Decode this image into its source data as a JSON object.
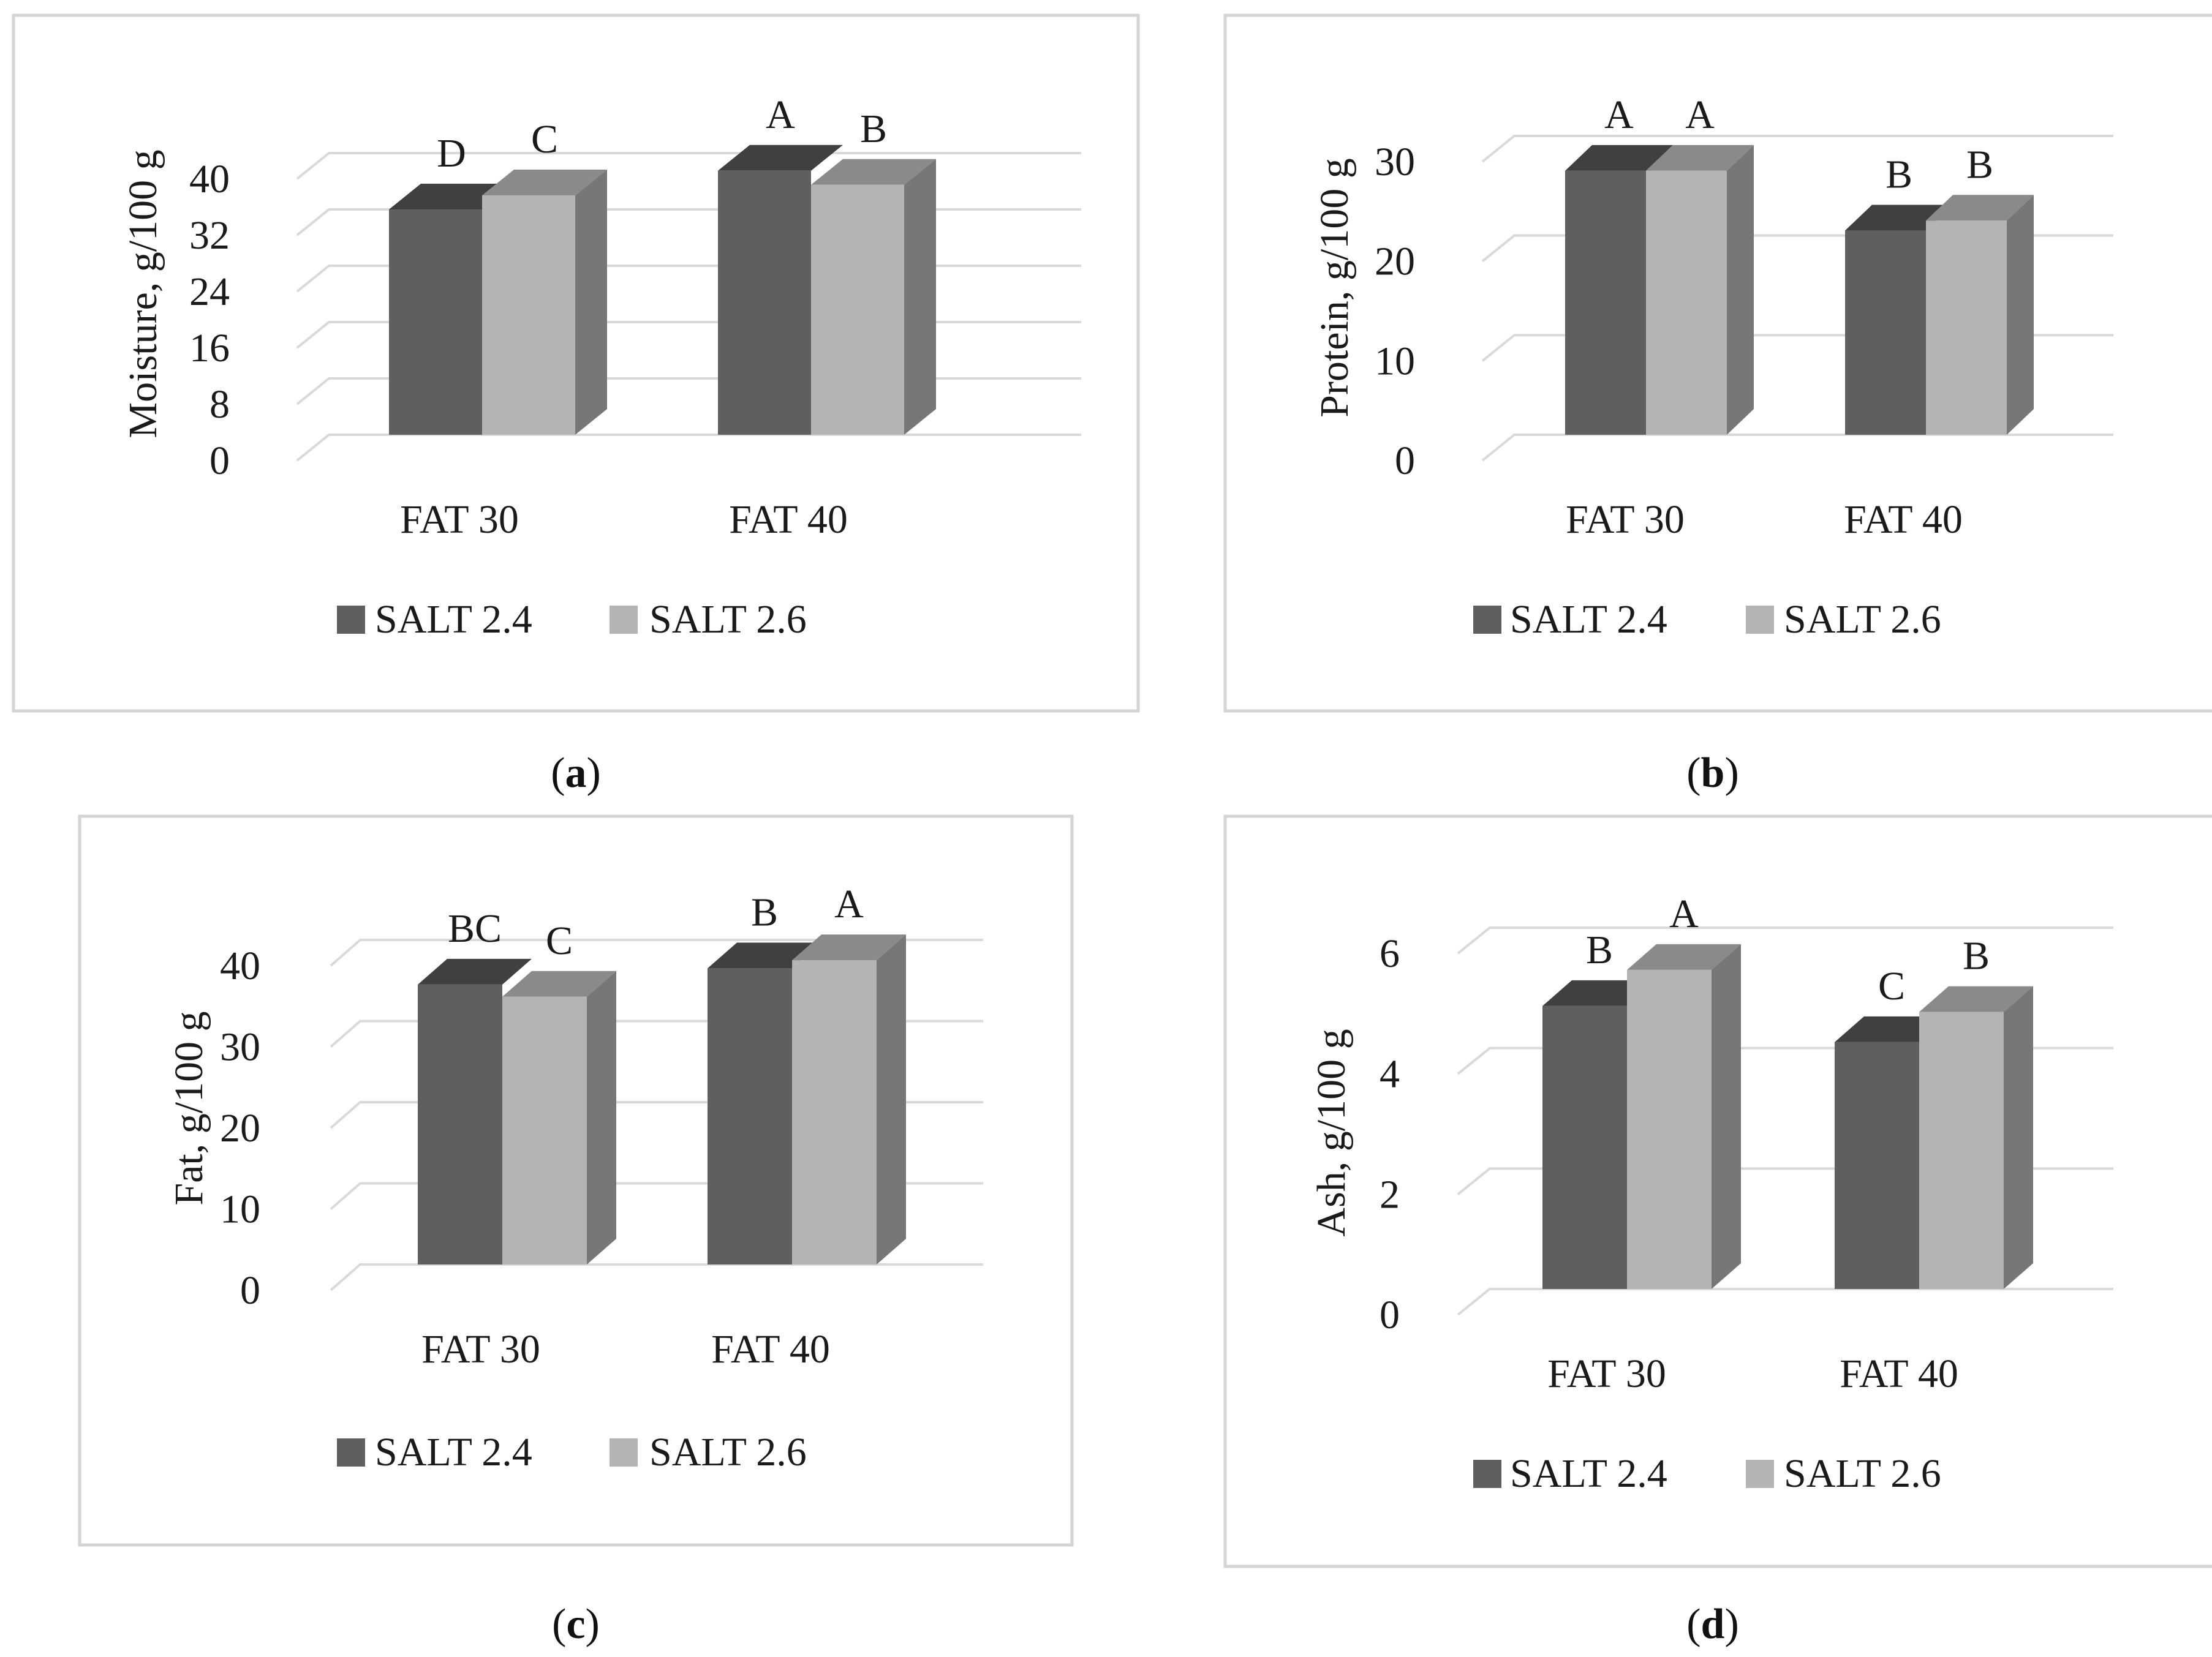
{
  "figure": {
    "panel_labels": [
      {
        "open": "(",
        "letter": "a",
        "close": ")"
      },
      {
        "open": "(",
        "letter": "b",
        "close": ")"
      },
      {
        "open": "(",
        "letter": "c",
        "close": ")"
      },
      {
        "open": "(",
        "letter": "d",
        "close": ")"
      }
    ]
  },
  "colors": {
    "salt_2_4_front": "#5f5f5f",
    "salt_2_4_top": "#404040",
    "salt_2_6_front": "#b4b4b4",
    "salt_2_6_top": "#8a8a8a",
    "bar_side": "#777777",
    "gridline": "#d9d9d9",
    "frame": "#d4d4d4"
  },
  "chart_data": [
    {
      "type": "bar",
      "panel": "a",
      "categories": [
        "FAT 30",
        "FAT 40"
      ],
      "series": [
        {
          "name": "SALT 2.4",
          "values": [
            32,
            37.5
          ],
          "letters": [
            "D",
            "A"
          ]
        },
        {
          "name": "SALT 2.6",
          "values": [
            34,
            35.5
          ],
          "letters": [
            "C",
            "B"
          ]
        }
      ],
      "ylabel": "Moisture, g/100 g",
      "ylim": [
        0,
        40
      ],
      "yticks": [
        "0",
        "8",
        "16",
        "24",
        "32",
        "40"
      ],
      "legend": "bottom"
    },
    {
      "type": "bar",
      "panel": "b",
      "categories": [
        "FAT 30",
        "FAT 40"
      ],
      "series": [
        {
          "name": "SALT 2.4",
          "values": [
            26.5,
            20.5
          ],
          "letters": [
            "A",
            "B"
          ]
        },
        {
          "name": "SALT 2.6",
          "values": [
            26.5,
            21.5
          ],
          "letters": [
            "A",
            "B"
          ]
        }
      ],
      "ylabel": "Protein, g/100 g",
      "ylim": [
        0,
        30
      ],
      "yticks": [
        "0",
        "10",
        "20",
        "30"
      ],
      "legend": "bottom"
    },
    {
      "type": "bar",
      "panel": "c",
      "categories": [
        "FAT 30",
        "FAT 40"
      ],
      "series": [
        {
          "name": "SALT 2.4",
          "values": [
            34.5,
            36.5
          ],
          "letters": [
            "BC",
            "B"
          ]
        },
        {
          "name": "SALT 2.6",
          "values": [
            33,
            37.5
          ],
          "letters": [
            "C",
            "A"
          ]
        }
      ],
      "ylabel": "Fat, g/100 g",
      "ylim": [
        0,
        40
      ],
      "yticks": [
        "0",
        "10",
        "20",
        "30",
        "40"
      ],
      "legend": "bottom"
    },
    {
      "type": "bar",
      "panel": "d",
      "categories": [
        "FAT 30",
        "FAT 40"
      ],
      "series": [
        {
          "name": "SALT 2.4",
          "values": [
            4.7,
            4.1
          ],
          "letters": [
            "B",
            "C"
          ]
        },
        {
          "name": "SALT 2.6",
          "values": [
            5.3,
            4.6
          ],
          "letters": [
            "A",
            "B"
          ]
        }
      ],
      "ylabel": "Ash, g/100 g",
      "ylim": [
        0,
        6
      ],
      "yticks": [
        "0",
        "2",
        "4",
        "6"
      ],
      "legend": "bottom"
    }
  ]
}
